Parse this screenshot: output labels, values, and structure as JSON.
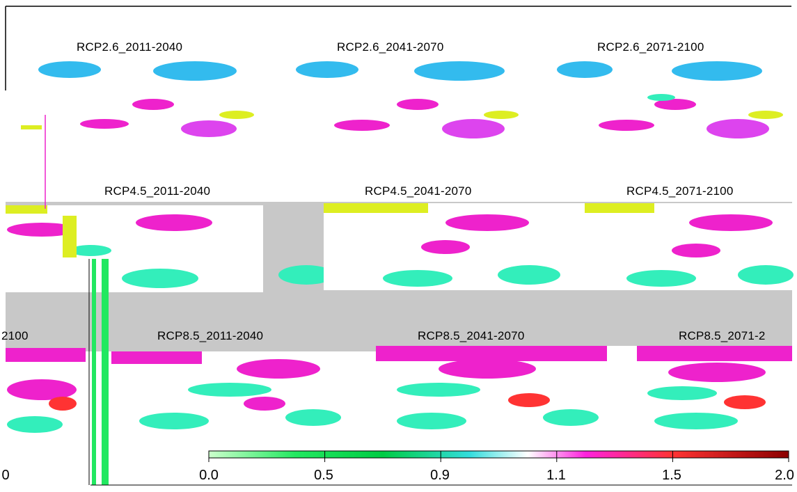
{
  "panels": [
    {
      "title": "RCP2.6_2011-2040"
    },
    {
      "title": "RCP2.6_2041-2070"
    },
    {
      "title": "RCP2.6_2071-2100"
    },
    {
      "title": "RCP4.5_2011-2040"
    },
    {
      "title": "RCP4.5_2041-2070"
    },
    {
      "title": "RCP4.5_2071-2100"
    },
    {
      "title": "RCP8.5_2011-2040"
    },
    {
      "title": "RCP8.5_2041-2070"
    },
    {
      "title": "RCP8.5_2071-2"
    }
  ],
  "left_fragment_title": "2100",
  "left_fragment_tick": "0",
  "colorbar": {
    "ticks": [
      "0.0",
      "0.5",
      "0.9",
      "1.1",
      "1.5",
      "2.0"
    ],
    "colors": [
      "#22e860",
      "#00cc44",
      "#33dddd",
      "#ffffff",
      "#ff22dd",
      "#ff3333",
      "#8b0000"
    ]
  },
  "colors": {
    "background_gray": "#c8c8c8",
    "blue": "#33bbee",
    "cyan": "#33eebb",
    "magenta": "#ee22cc",
    "yellow": "#ddee22"
  }
}
